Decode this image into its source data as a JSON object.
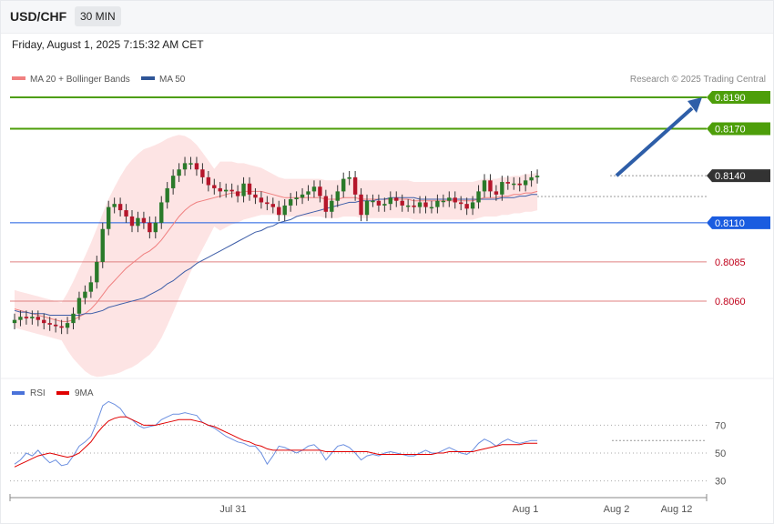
{
  "header": {
    "symbol": "USD/CHF",
    "timeframe": "30 MIN"
  },
  "datetime": "Friday, August 1, 2025 7:15:32 AM CET",
  "legend": [
    {
      "label": "MA 20 + Bollinger Bands",
      "color": "#f08080"
    },
    {
      "label": "MA 50",
      "color": "#2f5597"
    }
  ],
  "credit": "Research © 2025 Trading Central",
  "rsi_legend": [
    {
      "label": "RSI",
      "color": "#4a72d9"
    },
    {
      "label": "9MA",
      "color": "#e00000"
    }
  ],
  "colors": {
    "up": "#2a7a2a",
    "down": "#b5162b",
    "resistance": "#4d9e0a",
    "pivot": "#1a5ce0",
    "support": "#e08080",
    "arrow": "#2e5ea8"
  },
  "chart_data": [
    {
      "type": "candlestick",
      "ylim": [
        0.8003,
        0.821
      ],
      "levels": [
        {
          "value": 0.819,
          "label": "0.8190",
          "kind": "resistance"
        },
        {
          "value": 0.817,
          "label": "0.8170",
          "kind": "resistance"
        },
        {
          "value": 0.814,
          "label": "0.8140",
          "kind": "last"
        },
        {
          "value": 0.811,
          "label": "0.8110",
          "kind": "pivot"
        },
        {
          "value": 0.8085,
          "label": "0.8085",
          "kind": "support"
        },
        {
          "value": 0.806,
          "label": "0.8060",
          "kind": "support"
        }
      ],
      "x_ticks": [
        "Jul 31",
        "Aug 1",
        "Aug 2",
        "Aug 12"
      ],
      "close": [
        0.8048,
        0.805,
        0.8049,
        0.805,
        0.8048,
        0.8046,
        0.8045,
        0.8044,
        0.8043,
        0.8046,
        0.8052,
        0.8062,
        0.8066,
        0.8072,
        0.8085,
        0.8106,
        0.812,
        0.8122,
        0.8118,
        0.8114,
        0.8108,
        0.8113,
        0.811,
        0.8104,
        0.811,
        0.8123,
        0.8132,
        0.814,
        0.8144,
        0.8148,
        0.8148,
        0.8144,
        0.8139,
        0.8134,
        0.8132,
        0.813,
        0.8131,
        0.813,
        0.8127,
        0.8135,
        0.8128,
        0.8126,
        0.8123,
        0.8122,
        0.812,
        0.8115,
        0.8121,
        0.8125,
        0.8126,
        0.8128,
        0.813,
        0.8133,
        0.8127,
        0.8117,
        0.8124,
        0.813,
        0.8138,
        0.8139,
        0.8128,
        0.8115,
        0.8124,
        0.8124,
        0.8121,
        0.8122,
        0.8126,
        0.8124,
        0.8121,
        0.8121,
        0.812,
        0.8123,
        0.812,
        0.812,
        0.8124,
        0.8124,
        0.8126,
        0.8123,
        0.8122,
        0.8119,
        0.8123,
        0.813,
        0.8137,
        0.813,
        0.8128,
        0.8136,
        0.8135,
        0.8135,
        0.8134,
        0.8137,
        0.8139,
        0.814
      ],
      "ma20": [
        0.8055,
        0.8054,
        0.8053,
        0.8052,
        0.8051,
        0.805,
        0.8049,
        0.8048,
        0.8047,
        0.8047,
        0.8048,
        0.805,
        0.8052,
        0.8055,
        0.8059,
        0.8064,
        0.8069,
        0.8073,
        0.8077,
        0.8081,
        0.8084,
        0.8087,
        0.809,
        0.8092,
        0.8095,
        0.8099,
        0.8104,
        0.8109,
        0.8114,
        0.8118,
        0.8121,
        0.8123,
        0.8124,
        0.8125,
        0.8126,
        0.8127,
        0.8128,
        0.8129,
        0.8129,
        0.813,
        0.813,
        0.813,
        0.813,
        0.8129,
        0.8128,
        0.8127,
        0.8126,
        0.8126,
        0.8126,
        0.8126,
        0.8126,
        0.8126,
        0.8126,
        0.8125,
        0.8125,
        0.8125,
        0.8126,
        0.8126,
        0.8126,
        0.8125,
        0.8125,
        0.8125,
        0.8125,
        0.8125,
        0.8125,
        0.8125,
        0.8125,
        0.8125,
        0.8124,
        0.8124,
        0.8124,
        0.8124,
        0.8124,
        0.8124,
        0.8124,
        0.8124,
        0.8124,
        0.8124,
        0.8124,
        0.8125,
        0.8126,
        0.8126,
        0.8126,
        0.8127,
        0.8127,
        0.8128,
        0.8128,
        0.8129,
        0.8129,
        0.813
      ],
      "ma50": [
        0.8054,
        0.8053,
        0.8053,
        0.8052,
        0.8052,
        0.8052,
        0.8051,
        0.8051,
        0.8051,
        0.8051,
        0.8051,
        0.8051,
        0.8052,
        0.8052,
        0.8053,
        0.8054,
        0.8056,
        0.8057,
        0.8058,
        0.8059,
        0.806,
        0.8061,
        0.8062,
        0.8064,
        0.8066,
        0.8068,
        0.8071,
        0.8073,
        0.8076,
        0.8079,
        0.8081,
        0.8084,
        0.8086,
        0.8088,
        0.809,
        0.8092,
        0.8094,
        0.8096,
        0.8098,
        0.81,
        0.8102,
        0.8104,
        0.8105,
        0.8107,
        0.8108,
        0.811,
        0.8111,
        0.8112,
        0.8114,
        0.8115,
        0.8116,
        0.8117,
        0.8118,
        0.8119,
        0.812,
        0.8121,
        0.8122,
        0.8123,
        0.8123,
        0.8124,
        0.8124,
        0.8124,
        0.8125,
        0.8125,
        0.8126,
        0.8126,
        0.8126,
        0.8126,
        0.8126,
        0.8125,
        0.8125,
        0.8125,
        0.8125,
        0.8125,
        0.8125,
        0.8125,
        0.8125,
        0.8125,
        0.8125,
        0.8125,
        0.8125,
        0.8125,
        0.8125,
        0.8126,
        0.8126,
        0.8126,
        0.8127,
        0.8127,
        0.8128,
        0.8128
      ],
      "forecast": {
        "from": 0.814,
        "to": 0.819
      }
    },
    {
      "type": "line",
      "title": "RSI",
      "ylim": [
        20,
        80
      ],
      "y_ticks": [
        70,
        50,
        30
      ],
      "rsi": [
        42,
        45,
        50,
        48,
        52,
        47,
        43,
        45,
        41,
        42,
        48,
        55,
        58,
        62,
        72,
        84,
        87,
        85,
        82,
        76,
        74,
        70,
        68,
        69,
        70,
        74,
        76,
        78,
        78,
        79,
        78,
        77,
        72,
        70,
        68,
        65,
        62,
        60,
        58,
        57,
        55,
        55,
        50,
        42,
        48,
        55,
        54,
        52,
        50,
        52,
        55,
        56,
        52,
        45,
        50,
        55,
        56,
        54,
        50,
        45,
        48,
        49,
        48,
        50,
        51,
        50,
        49,
        48,
        48,
        50,
        52,
        50,
        50,
        52,
        54,
        52,
        50,
        49,
        52,
        57,
        60,
        58,
        55,
        58,
        60,
        58,
        57,
        58,
        59,
        59
      ],
      "rsi_ma": [
        40,
        42,
        44,
        46,
        48,
        49,
        50,
        49,
        48,
        47,
        48,
        50,
        54,
        58,
        64,
        69,
        73,
        75,
        76,
        76,
        74,
        72,
        70,
        70,
        70,
        71,
        72,
        73,
        74,
        74,
        74,
        73,
        72,
        70,
        69,
        67,
        65,
        63,
        61,
        59,
        58,
        56,
        55,
        53,
        52,
        52,
        52,
        52,
        52,
        52,
        52,
        52,
        52,
        51,
        51,
        51,
        51,
        51,
        51,
        51,
        51,
        50,
        49,
        49,
        49,
        49,
        49,
        49,
        49,
        49,
        49,
        49,
        50,
        50,
        51,
        51,
        51,
        51,
        51,
        52,
        53,
        54,
        55,
        56,
        56,
        56,
        56,
        57,
        57,
        57
      ]
    }
  ]
}
